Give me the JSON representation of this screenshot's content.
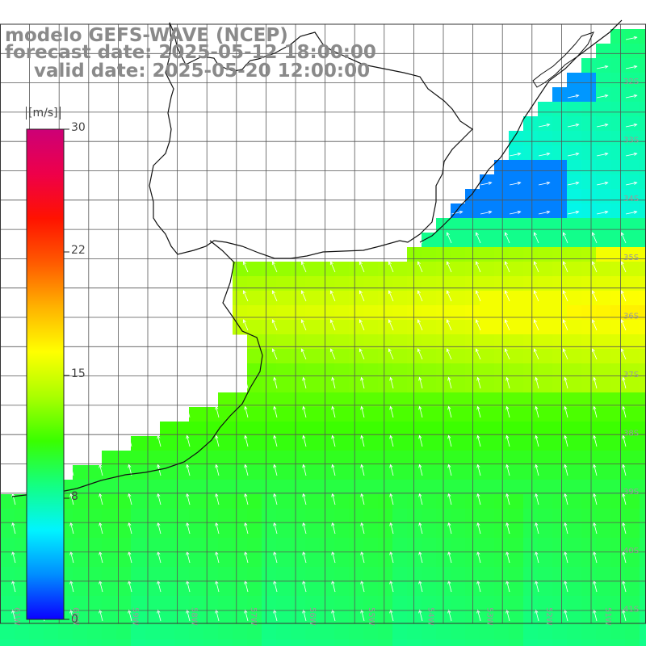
{
  "title": {
    "line1": "modelo GEFS-WAVE (NCEP)",
    "line2": "forecast date: 2025-05-12 18:00:00",
    "line3": "valid date: 2025-05-20 12:00:00"
  },
  "colorbar": {
    "unit": "[m/s]",
    "ticks": [
      "30",
      "22",
      "15",
      "8",
      "0"
    ],
    "stops": [
      "#0a00ff",
      "#008dff",
      "#00f4ff",
      "#13ff83",
      "#39ff00",
      "#aaff00",
      "#ffff00",
      "#ffb300",
      "#ff5a00",
      "#ff1200",
      "#ee004a",
      "#cc0077"
    ]
  },
  "map": {
    "lon_labels": [
      "61W",
      "60W",
      "59W",
      "58W",
      "57W",
      "56W",
      "55W",
      "54W",
      "53W",
      "52W",
      "51W"
    ],
    "lat_labels": [
      "32S",
      "33S",
      "34S",
      "35S",
      "36S",
      "37S",
      "38S",
      "39S",
      "40S",
      "41S"
    ],
    "region": "Rio de la Plata and southern Brazil coast",
    "field": "wind speed with arrow vectors"
  }
}
